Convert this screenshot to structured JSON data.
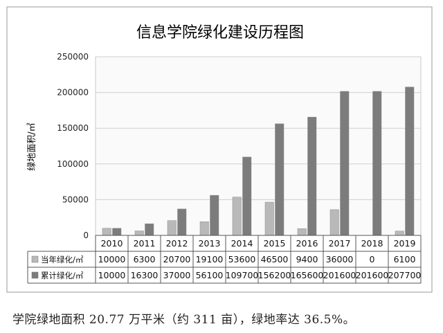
{
  "chart_data": {
    "type": "bar",
    "title": "信息学院绿化建设历程图",
    "ylabel": "绿地面积/㎡",
    "xlabel": "",
    "ylim": [
      0,
      250000
    ],
    "y_ticks": [
      "0",
      "50000",
      "100000",
      "150000",
      "200000",
      "250000"
    ],
    "categories": [
      "2010",
      "2011",
      "2012",
      "2013",
      "2014",
      "2015",
      "2016",
      "2017",
      "2018",
      "2019"
    ],
    "series": [
      {
        "name": "当年绿化/㎡",
        "color": "#b9b9b9",
        "values": [
          10000,
          6300,
          20700,
          19100,
          53600,
          46500,
          9400,
          36000,
          0,
          6100
        ]
      },
      {
        "name": "累计绿化/㎡",
        "color": "#7c7c7c",
        "values": [
          10000,
          16300,
          37000,
          56100,
          109700,
          156200,
          165600,
          201600,
          201600,
          207700
        ]
      }
    ],
    "grid": true,
    "data_table": true
  },
  "caption": "学院绿地面积 20.77 万平米（约 311 亩），绿地率达 36.5%。"
}
